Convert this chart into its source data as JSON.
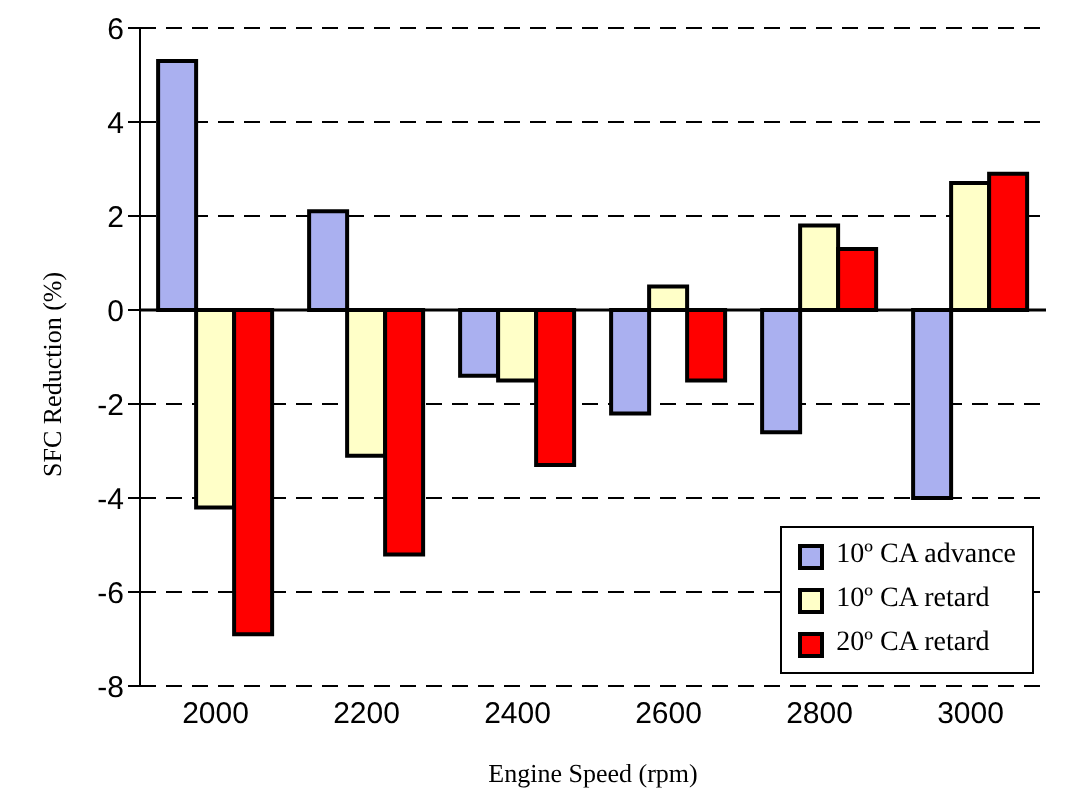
{
  "chart_data": {
    "type": "bar",
    "xlabel": "Engine Speed (rpm)",
    "ylabel": "SFC Reduction (%)",
    "categories": [
      "2000",
      "2200",
      "2400",
      "2600",
      "2800",
      "3000"
    ],
    "series": [
      {
        "name": "10º CA advance",
        "color": "#aab0f0",
        "values": [
          5.3,
          2.1,
          -1.4,
          -2.2,
          -2.6,
          -4.0
        ]
      },
      {
        "name": "10º CA retard",
        "color": "#ffffc8",
        "values": [
          -4.2,
          -3.1,
          -1.5,
          0.5,
          1.8,
          2.7
        ]
      },
      {
        "name": "20º CA retard",
        "color": "#ff0000",
        "values": [
          -6.9,
          -5.2,
          -3.3,
          -1.5,
          1.3,
          2.9
        ]
      }
    ],
    "ylim": [
      -8,
      6
    ],
    "yticks": [
      -8,
      -6,
      -4,
      -2,
      0,
      2,
      4,
      6
    ],
    "grid": "y",
    "legend": "bottom right"
  }
}
